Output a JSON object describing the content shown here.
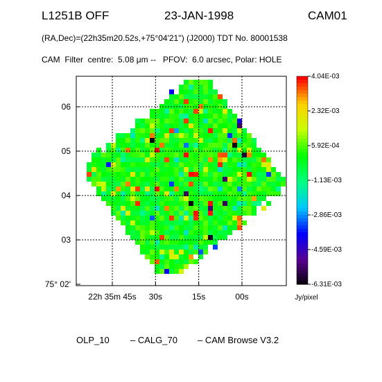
{
  "header": {
    "target": "L1251B OFF",
    "date": "23-JAN-1998",
    "camera": "CAM01",
    "coords": "(RA,Dec)=(22h35m20.52s,+75°04'21'') (J2000) TDT No. 80001538",
    "filter_line": "CAM  Filter  centre:  5.08 μm --   PFOV:  6.0 arcsec, Polar: HOLE"
  },
  "footer": {
    "olp": "OLP_10",
    "calg": "– CALG_70",
    "browse": "– CAM Browse V3.2"
  },
  "chart_data": {
    "type": "heatmap",
    "title": "L1251B OFF",
    "xlabel": "",
    "ylabel": "",
    "y_ticks": [
      {
        "label": "06",
        "value": 6
      },
      {
        "label": "05",
        "value": 5
      },
      {
        "label": "04",
        "value": 4
      },
      {
        "label": "03",
        "value": 3
      },
      {
        "label": "75° 02'",
        "value": 2
      }
    ],
    "x_ticks": [
      {
        "label": "22h 35m 45s",
        "value": 45
      },
      {
        "label": "30s",
        "value": 30
      },
      {
        "label": "15s",
        "value": 15
      },
      {
        "label": "00s",
        "value": 0
      }
    ],
    "colorbar": {
      "unit": "Jy/pixel",
      "min": -0.00631,
      "max": 0.00404,
      "labels": [
        "4.04E-03",
        "2.32E-03",
        "5.92E-04",
        "-1.13E-03",
        "-2.86E-03",
        "-4.59E-03",
        "-6.31E-03"
      ],
      "colors": [
        "#000000",
        "#5a0090",
        "#0000ff",
        "#00c8ff",
        "#00ff80",
        "#00ff00",
        "#c8ff00",
        "#ffd000",
        "#ff0000"
      ]
    },
    "field": {
      "pattern": "rotated-square mosaic of pixels, dominated by green (~ -1.1E-03 Jy/pixel) with scattered yellow/cyan/blue values and a few red and dark outliers"
    },
    "grid": true
  }
}
